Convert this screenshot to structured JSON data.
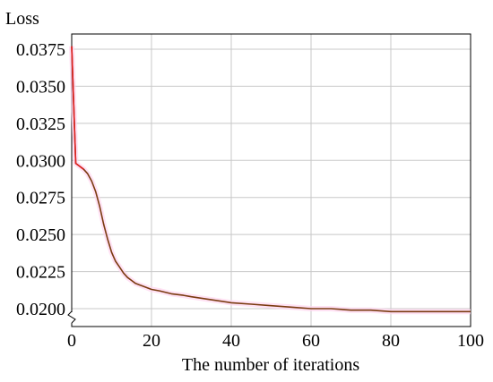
{
  "chart_data": {
    "type": "line",
    "title": "",
    "xlabel": "The number of iterations",
    "ylabel": "Loss",
    "xlim": [
      0,
      100
    ],
    "ylim": [
      0.02,
      0.038
    ],
    "y_axis_break": true,
    "grid": true,
    "legend": "none",
    "x_ticks": [
      0,
      20,
      40,
      60,
      80,
      100
    ],
    "y_ticks": [
      "0.0200",
      "0.0225",
      "0.0250",
      "0.0275",
      "0.0300",
      "0.0325",
      "0.0350",
      "0.0375"
    ],
    "series": [
      {
        "color": "#7a3b10",
        "highlight_color": "#e02020",
        "x": [
          0,
          1,
          2,
          3,
          4,
          5,
          6,
          7,
          8,
          9,
          10,
          11,
          12,
          13,
          14,
          15,
          16,
          17,
          18,
          20,
          22,
          25,
          28,
          30,
          35,
          40,
          45,
          50,
          55,
          60,
          65,
          70,
          75,
          80,
          85,
          90,
          95,
          100
        ],
        "y": [
          0.0377,
          0.0298,
          0.0296,
          0.0294,
          0.0291,
          0.0286,
          0.0279,
          0.0269,
          0.0257,
          0.0247,
          0.0238,
          0.0232,
          0.0228,
          0.0224,
          0.0221,
          0.0219,
          0.0217,
          0.0216,
          0.0215,
          0.0213,
          0.0212,
          0.021,
          0.0209,
          0.0208,
          0.0206,
          0.0204,
          0.0203,
          0.0202,
          0.0201,
          0.02,
          0.02,
          0.0199,
          0.0199,
          0.0198,
          0.0198,
          0.0198,
          0.0198,
          0.0198
        ]
      }
    ]
  }
}
